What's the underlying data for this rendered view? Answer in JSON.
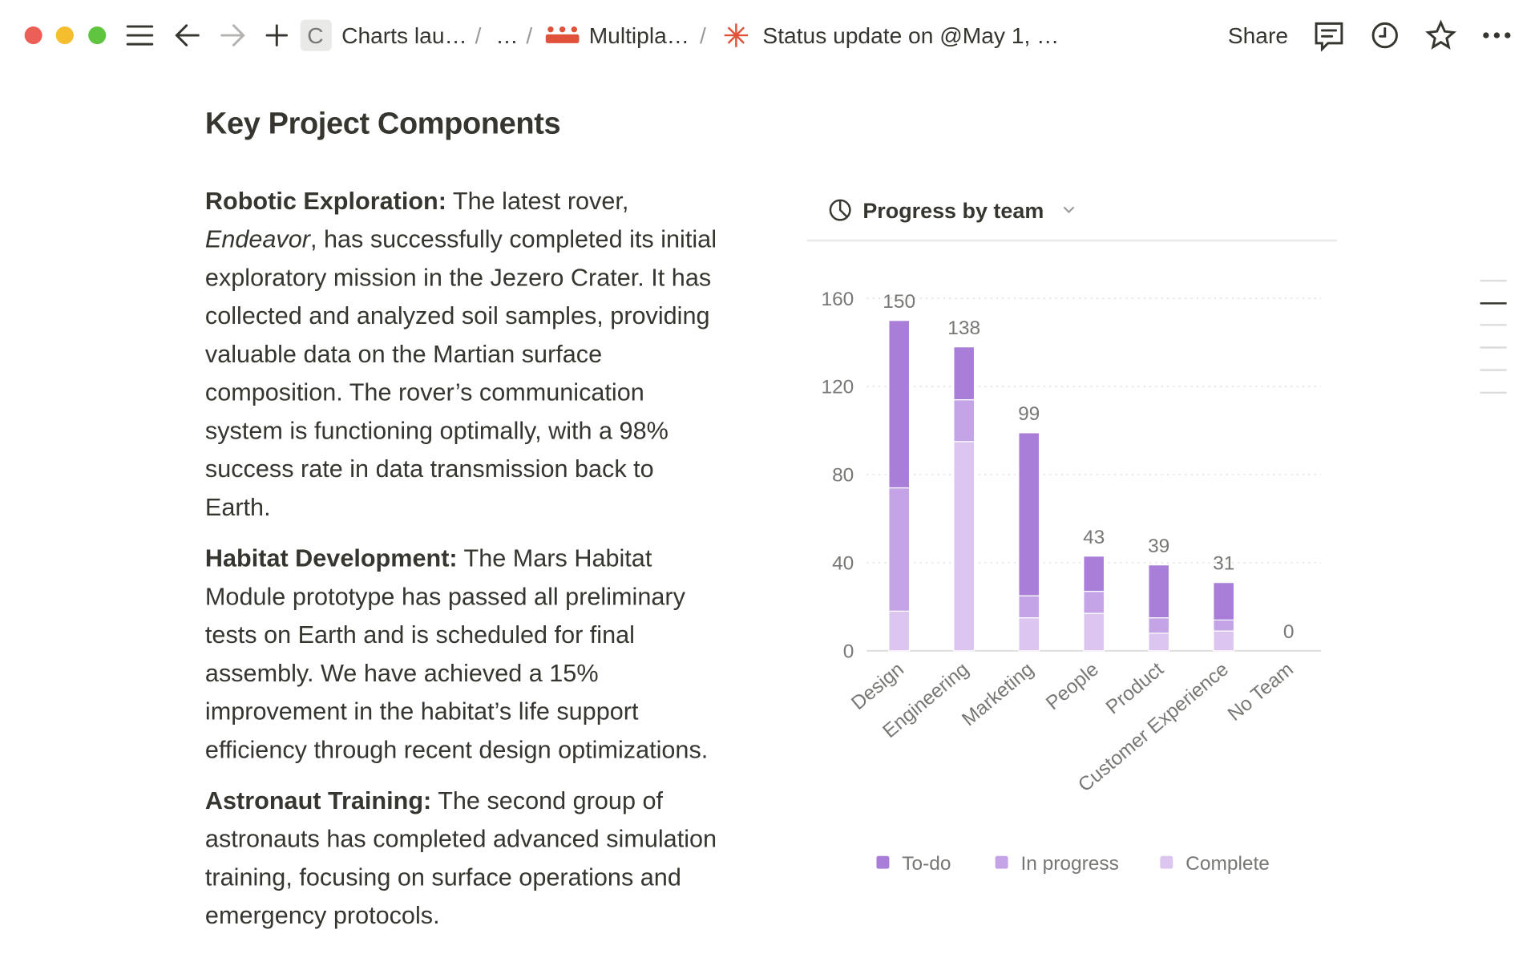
{
  "toolbar": {
    "workspace_initial": "C",
    "breadcrumb": [
      "Charts lau…",
      "…",
      "Multipla…",
      "Status update on @May 1, …"
    ],
    "separator": "/",
    "share": "Share"
  },
  "document": {
    "title": "Key Project Components",
    "sections": [
      {
        "heading": "Robotic Exploration:",
        "body": [
          "The latest rover, ",
          "Endeavor",
          ", has successfully completed its initial exploratory mission in the Jezero Crater. It has collected and analyzed soil samples, providing valuable data on the Martian surface composition. The rover’s communication system is functioning optimally, with a 98% success rate in data transmission back to Earth."
        ]
      },
      {
        "heading": "Habitat Development:",
        "body": [
          "The Mars Habitat Module prototype has passed all preliminary tests on Earth and is scheduled for final assembly. We have achieved a 15% improvement in the habitat’s life support efficiency through recent design optimizations."
        ]
      },
      {
        "heading": "Astronaut Training:",
        "body": [
          "The second group of astronauts has completed advanced simulation training, focusing on surface operations and emergency protocols."
        ]
      }
    ]
  },
  "chart_data": {
    "type": "stacked_bar",
    "title": "Progress by team",
    "categories": [
      "Design",
      "Engineering",
      "Marketing",
      "People",
      "Product",
      "Customer Experience",
      "No Team"
    ],
    "series": [
      {
        "name": "Complete",
        "color": "#dcc6f0",
        "values": [
          18,
          95,
          15,
          17,
          8,
          9,
          0
        ]
      },
      {
        "name": "In progress",
        "color": "#c4a3e6",
        "values": [
          56,
          19,
          10,
          10,
          7,
          5,
          0
        ]
      },
      {
        "name": "To-do",
        "color": "#a87ed9",
        "values": [
          76,
          24,
          74,
          16,
          24,
          17,
          0
        ]
      }
    ],
    "totals": [
      150,
      138,
      99,
      43,
      39,
      31,
      0
    ],
    "legend_order": [
      2,
      1,
      0
    ],
    "ylim": [
      0,
      160
    ],
    "yticks": [
      0,
      40,
      80,
      120,
      160
    ],
    "grid": true
  }
}
